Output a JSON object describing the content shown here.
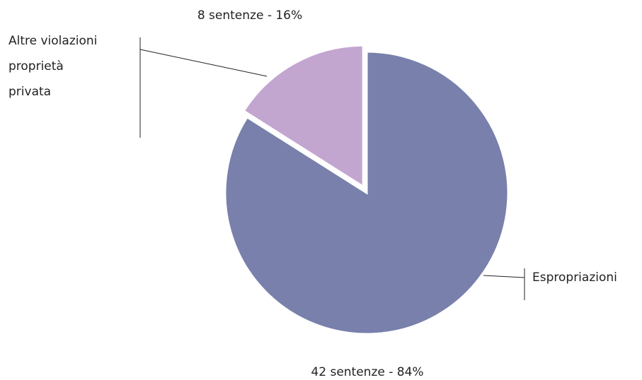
{
  "chart_data": {
    "type": "pie",
    "categories": [
      "Espropriazioni",
      "Altre violazioni proprietà privata"
    ],
    "values": [
      84,
      16
    ],
    "value_labels": [
      "42 sentenze - 84%",
      "8 sentenze - 16%"
    ],
    "colors": [
      "#7880ab",
      "#c2a6d0"
    ]
  }
}
